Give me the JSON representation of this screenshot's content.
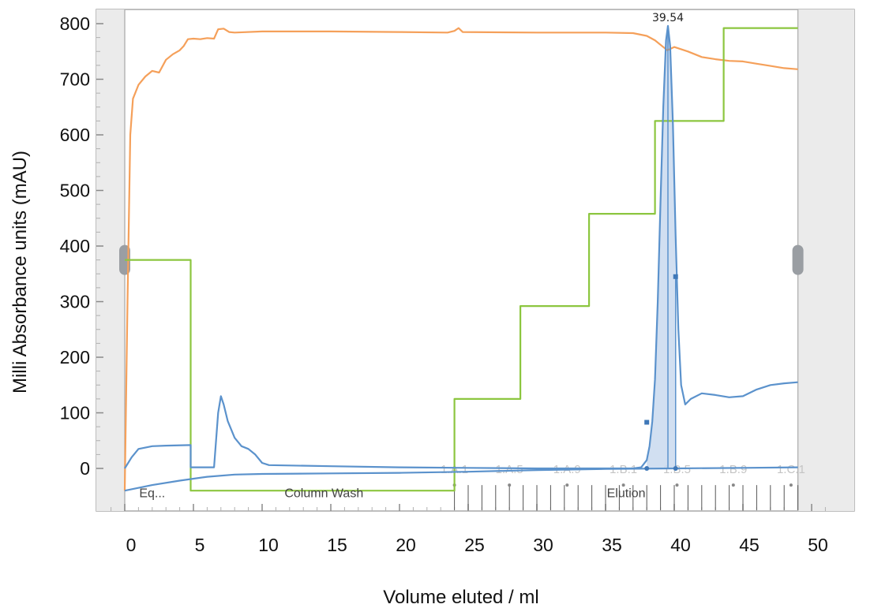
{
  "chart_data": {
    "type": "line",
    "xlabel": "Volume eluted / ml",
    "ylabel": "Milli Absorbance units (mAU)",
    "xlim": [
      -2,
      52
    ],
    "ylim": [
      -70,
      815
    ],
    "x_ticks": [
      0,
      5,
      10,
      15,
      20,
      25,
      30,
      35,
      40,
      45,
      50
    ],
    "y_ticks": [
      0,
      100,
      200,
      300,
      400,
      500,
      600,
      700,
      800
    ],
    "grid": false,
    "legend": "none",
    "series": [
      {
        "color": "#f5a05a",
        "points": [
          [
            0,
            -40
          ],
          [
            0.2,
            300
          ],
          [
            0.4,
            600
          ],
          [
            0.6,
            665
          ],
          [
            1,
            690
          ],
          [
            1.5,
            705
          ],
          [
            2,
            715
          ],
          [
            2.5,
            712
          ],
          [
            3,
            735
          ],
          [
            3.5,
            745
          ],
          [
            4,
            752
          ],
          [
            4.3,
            760
          ],
          [
            4.6,
            772
          ],
          [
            5,
            773
          ],
          [
            5.5,
            772
          ],
          [
            6,
            774
          ],
          [
            6.5,
            773
          ],
          [
            6.8,
            790
          ],
          [
            7.2,
            791
          ],
          [
            7.6,
            785
          ],
          [
            8,
            784
          ],
          [
            10,
            786
          ],
          [
            15,
            786
          ],
          [
            20,
            785
          ],
          [
            23.5,
            784
          ],
          [
            24,
            787
          ],
          [
            24.3,
            792
          ],
          [
            24.6,
            785
          ],
          [
            30,
            784
          ],
          [
            35,
            784
          ],
          [
            37,
            783
          ],
          [
            38,
            778
          ],
          [
            38.6,
            770
          ],
          [
            39.1,
            760
          ],
          [
            39.5,
            752
          ],
          [
            40,
            758
          ],
          [
            41,
            750
          ],
          [
            42,
            740
          ],
          [
            43,
            736
          ],
          [
            44,
            733
          ],
          [
            45,
            732
          ],
          [
            46,
            728
          ],
          [
            47,
            724
          ],
          [
            48,
            720
          ],
          [
            49,
            718
          ]
        ]
      },
      {
        "color": "#8cc63f",
        "points": [
          [
            0,
            375
          ],
          [
            4.8,
            375
          ],
          [
            4.8,
            -40
          ],
          [
            24,
            -40
          ],
          [
            24,
            125
          ],
          [
            28.8,
            125
          ],
          [
            28.8,
            292
          ],
          [
            33.8,
            292
          ],
          [
            33.8,
            458
          ],
          [
            38.6,
            458
          ],
          [
            38.6,
            625
          ],
          [
            43.6,
            625
          ],
          [
            43.6,
            792
          ],
          [
            49,
            792
          ]
        ]
      },
      {
        "color": "#5b92cc",
        "points": [
          [
            0,
            0
          ],
          [
            0.5,
            20
          ],
          [
            1,
            35
          ],
          [
            2,
            40
          ],
          [
            3,
            41
          ],
          [
            4.8,
            42
          ],
          [
            4.8,
            2
          ],
          [
            6.5,
            2
          ],
          [
            6.8,
            100
          ],
          [
            7,
            130
          ],
          [
            7.2,
            115
          ],
          [
            7.5,
            85
          ],
          [
            8,
            55
          ],
          [
            8.5,
            40
          ],
          [
            9,
            35
          ],
          [
            9.5,
            25
          ],
          [
            10,
            10
          ],
          [
            10.5,
            6
          ],
          [
            15,
            4
          ],
          [
            20,
            2
          ],
          [
            25,
            1
          ],
          [
            30,
            0
          ],
          [
            35,
            0
          ],
          [
            37,
            0
          ],
          [
            37.6,
            2
          ],
          [
            38,
            15
          ],
          [
            38.2,
            40
          ],
          [
            38.4,
            85
          ],
          [
            38.6,
            160
          ],
          [
            38.8,
            300
          ],
          [
            39,
            480
          ],
          [
            39.2,
            650
          ],
          [
            39.4,
            770
          ],
          [
            39.54,
            796
          ],
          [
            39.7,
            760
          ],
          [
            39.9,
            620
          ],
          [
            40.1,
            420
          ],
          [
            40.3,
            250
          ],
          [
            40.5,
            150
          ],
          [
            40.8,
            115
          ],
          [
            41.2,
            125
          ],
          [
            42,
            135
          ],
          [
            43,
            132
          ],
          [
            44,
            128
          ],
          [
            45,
            130
          ],
          [
            46,
            142
          ],
          [
            47,
            150
          ],
          [
            48,
            153
          ],
          [
            49,
            155
          ]
        ]
      },
      {
        "color": "#5b92cc",
        "points": [
          [
            0,
            -40
          ],
          [
            2,
            -30
          ],
          [
            4,
            -22
          ],
          [
            6,
            -15
          ],
          [
            8,
            -11
          ],
          [
            10,
            -10
          ],
          [
            15,
            -9
          ],
          [
            20,
            -8
          ],
          [
            25,
            -6
          ],
          [
            30,
            -3
          ],
          [
            35,
            -1
          ],
          [
            40,
            0
          ],
          [
            45,
            1
          ],
          [
            49,
            2
          ]
        ]
      }
    ],
    "annotations": {
      "peak": {
        "x": 39.54,
        "y": 796,
        "label": "39.54"
      },
      "phases": [
        {
          "label": "Eq...",
          "x": 2
        },
        {
          "label": "Column Wash",
          "x": 14.5
        },
        {
          "label": "Elution",
          "x": 36.5
        }
      ],
      "fractions": [
        {
          "label": "1.A.1",
          "x": 24
        },
        {
          "label": "1.A.5",
          "x": 28
        },
        {
          "label": "1.A.9",
          "x": 32.2
        },
        {
          "label": "1.B.1",
          "x": 36.3
        },
        {
          "label": "1.B.5",
          "x": 40.2
        },
        {
          "label": "1.B.9",
          "x": 44.3
        },
        {
          "label": "1.C.1",
          "x": 48.5
        }
      ]
    }
  }
}
